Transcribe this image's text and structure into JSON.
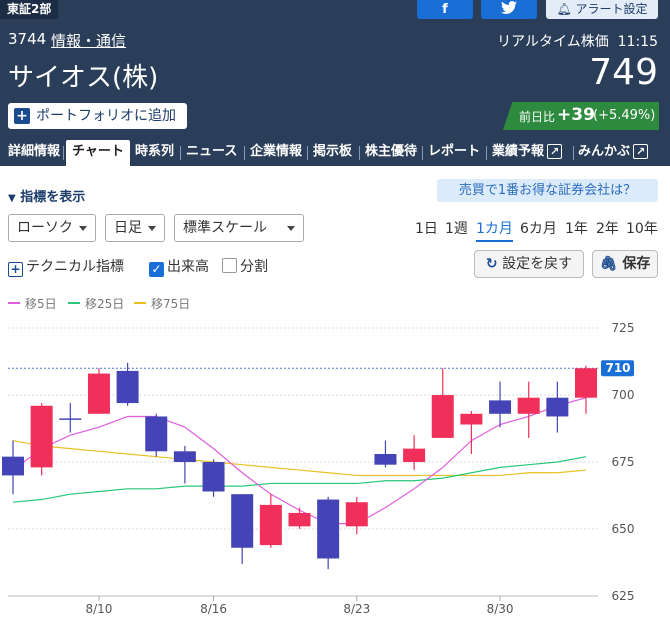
{
  "header": {
    "market": "東証2部",
    "facebook": "f",
    "twitter": "t",
    "alert_label": "アラート設定",
    "code": "3744",
    "industry": "情報・通信",
    "rt_label": "リアルタイム株価",
    "time": "11:15",
    "company": "サイオス(株)",
    "price": "749",
    "portfolio_label": "ポートフォリオに追加",
    "change_label": "前日比",
    "change_value": "+39",
    "change_pct": "(+5.49%)"
  },
  "tabs": [
    "詳細情報",
    "チャート",
    "時系列",
    "ニュース",
    "企業情報",
    "掲示板",
    "株主優待",
    "レポート",
    "業績予報",
    "みんかぶ"
  ],
  "controls": {
    "indicator_toggle": "指標を表示",
    "promo": "売買で1番お得な証券会社は？",
    "chart_type": "ローソク",
    "interval": "日足",
    "scale": "標準スケール",
    "periods": [
      "1日",
      "1週",
      "1カ月",
      "6カ月",
      "1年",
      "2年",
      "10年"
    ],
    "active_period": "1カ月",
    "technical_label": "テクニカル指標",
    "volume_label": "出来高",
    "split_label": "分割",
    "reset_label": "設定を戻す",
    "save_label": "保存"
  },
  "colors": {
    "up": "#f0305a",
    "down": "#4444b6",
    "ma5": "#e05ce0",
    "ma25": "#28c878",
    "ma75": "#e8c020",
    "header": "#2b3e59"
  },
  "chart_data": {
    "type": "candlestick",
    "legend": [
      "移5日",
      "移25日",
      "移75日"
    ],
    "ylim": [
      625,
      728
    ],
    "yticks": [
      625,
      650,
      675,
      700,
      725
    ],
    "xtick_labels": [
      "8/10",
      "8/16",
      "8/23",
      "8/30"
    ],
    "xtick_index": [
      3,
      7,
      12,
      17
    ],
    "last_price_label": "710",
    "last_price": 710,
    "candles": [
      {
        "o": 677,
        "c": 670,
        "h": 683,
        "l": 663
      },
      {
        "o": 673,
        "c": 696,
        "h": 697,
        "l": 670
      },
      {
        "o": 691,
        "c": 691,
        "h": 697,
        "l": 686
      },
      {
        "o": 693,
        "c": 708,
        "h": 710,
        "l": 693
      },
      {
        "o": 709,
        "c": 697,
        "h": 712,
        "l": 696
      },
      {
        "o": 692,
        "c": 679,
        "h": 693,
        "l": 677
      },
      {
        "o": 679,
        "c": 675,
        "h": 681,
        "l": 667
      },
      {
        "o": 675,
        "c": 664,
        "h": 676,
        "l": 662
      },
      {
        "o": 663,
        "c": 643,
        "h": 663,
        "l": 637
      },
      {
        "o": 644,
        "c": 659,
        "h": 663,
        "l": 643
      },
      {
        "o": 651,
        "c": 656,
        "h": 658,
        "l": 650
      },
      {
        "o": 661,
        "c": 639,
        "h": 662,
        "l": 635
      },
      {
        "o": 651,
        "c": 660,
        "h": 662,
        "l": 648
      },
      {
        "o": 678,
        "c": 674,
        "h": 683,
        "l": 673
      },
      {
        "o": 675,
        "c": 680,
        "h": 685,
        "l": 672
      },
      {
        "o": 684,
        "c": 700,
        "h": 710,
        "l": 684
      },
      {
        "o": 689,
        "c": 693,
        "h": 694,
        "l": 678
      },
      {
        "o": 698,
        "c": 693,
        "h": 705,
        "l": 688
      },
      {
        "o": 693,
        "c": 699,
        "h": 705,
        "l": 684
      },
      {
        "o": 699,
        "c": 692,
        "h": 705,
        "l": 686
      },
      {
        "o": 699,
        "c": 710,
        "h": 711,
        "l": 693
      }
    ],
    "ma5": [
      672,
      680,
      685,
      688,
      692,
      692,
      688,
      680,
      671,
      663,
      657,
      652,
      652,
      658,
      665,
      673,
      683,
      689,
      692,
      696,
      699
    ],
    "ma25": [
      660,
      661,
      663,
      664,
      665,
      665,
      666,
      666,
      666,
      667,
      667,
      667,
      667,
      668,
      668,
      669,
      671,
      673,
      674,
      675,
      677
    ],
    "ma75": [
      683,
      681,
      680,
      679,
      678,
      677,
      676,
      675,
      674,
      673,
      672,
      671,
      670,
      670,
      670,
      670,
      670,
      670,
      671,
      671,
      672
    ]
  }
}
